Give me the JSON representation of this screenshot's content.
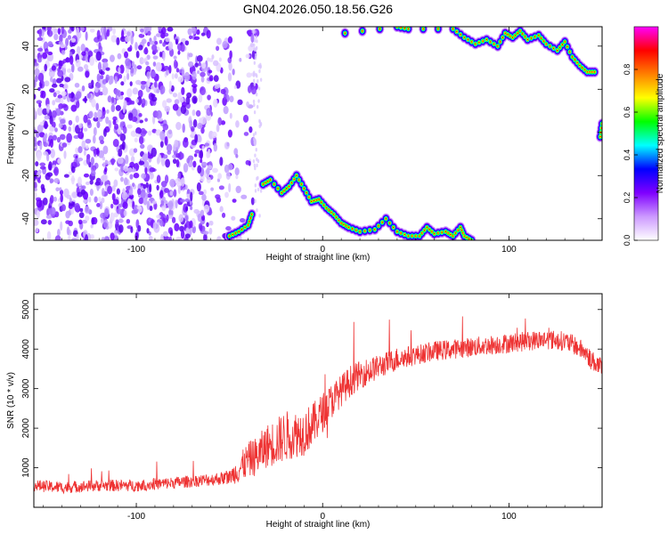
{
  "figure": {
    "title": "GN04.2026.050.18.56.G26"
  },
  "chart_data": [
    {
      "type": "heatmap",
      "title": "GN04.2026.050.18.56.G26",
      "xlabel": "Height of straight line (km)",
      "ylabel": "Frequency (Hz)",
      "xlim": [
        -155,
        150
      ],
      "ylim": [
        -50,
        49
      ],
      "x_ticks": [
        -100,
        0,
        100
      ],
      "x_tick_labels": [
        "-100",
        "0",
        "100"
      ],
      "y_ticks": [
        -40,
        -20,
        0,
        20,
        40
      ],
      "y_tick_labels": [
        "-40",
        "-20",
        "0",
        "20",
        "40"
      ],
      "colorbar": {
        "label": "Normalized spectral amplitude",
        "range": [
          0,
          1
        ],
        "ticks": [
          0.0,
          0.2,
          0.4,
          0.6,
          0.8
        ],
        "tick_labels": [
          "0.0",
          "0.2",
          "0.4",
          "0.6",
          "0.8"
        ],
        "colormap": [
          "#ffffff",
          "#cc99ff",
          "#7f00ff",
          "#0000ff",
          "#00ffff",
          "#00ff00",
          "#ffff00",
          "#ff8000",
          "#ff0000",
          "#ff00ff"
        ]
      },
      "noise_region": {
        "x_range": [
          -155,
          -35
        ],
        "y_range": [
          -50,
          49
        ],
        "typical_amplitude": 0.15
      },
      "ridge_tracks": [
        {
          "points": [
            [
              -50,
              -48
            ],
            [
              -45,
              -46
            ],
            [
              -40,
              -43
            ],
            [
              -38,
              -38
            ]
          ]
        },
        {
          "points": [
            [
              -32,
              -24
            ],
            [
              -28,
              -22
            ],
            [
              -22,
              -28
            ],
            [
              -18,
              -25
            ],
            [
              -14,
              -20
            ],
            [
              -10,
              -26
            ],
            [
              -6,
              -32
            ],
            [
              -2,
              -31
            ],
            [
              2,
              -35
            ],
            [
              6,
              -38
            ],
            [
              10,
              -42
            ],
            [
              14,
              -44
            ],
            [
              20,
              -46
            ],
            [
              28,
              -45
            ],
            [
              34,
              -40
            ],
            [
              40,
              -46
            ],
            [
              46,
              -48
            ],
            [
              52,
              -48
            ],
            [
              56,
              -44
            ],
            [
              60,
              -47
            ],
            [
              66,
              -46
            ],
            [
              70,
              -48
            ],
            [
              74,
              -44
            ],
            [
              76,
              -48
            ],
            [
              80,
              -50
            ]
          ]
        },
        {
          "points": [
            [
              12,
              46
            ],
            [
              40,
              49
            ],
            [
              46,
              48
            ],
            [
              70,
              48
            ],
            [
              76,
              44
            ],
            [
              82,
              41
            ],
            [
              88,
              43
            ],
            [
              94,
              40
            ],
            [
              98,
              46
            ],
            [
              102,
              44
            ],
            [
              106,
              47
            ],
            [
              110,
              43
            ],
            [
              116,
              45
            ],
            [
              120,
              41
            ],
            [
              126,
              38
            ],
            [
              130,
              42
            ],
            [
              134,
              35
            ],
            [
              138,
              31
            ],
            [
              142,
              28
            ],
            [
              146,
              28
            ]
          ]
        },
        {
          "points": [
            [
              150,
              4
            ],
            [
              149,
              -2
            ]
          ]
        }
      ]
    },
    {
      "type": "line",
      "xlabel": "Height of straight line (km)",
      "ylabel": "SNR (10 * v/v)",
      "xlim": [
        -155,
        150
      ],
      "ylim": [
        0,
        5400
      ],
      "x_ticks": [
        -100,
        0,
        100
      ],
      "x_tick_labels": [
        "-100",
        "0",
        "100"
      ],
      "y_ticks": [
        1000,
        2000,
        3000,
        4000,
        5000
      ],
      "y_tick_labels": [
        "1000",
        "2000",
        "3000",
        "4000",
        "5000"
      ],
      "color": "#ee3333",
      "series": [
        {
          "x": [
            -155,
            -140,
            -120,
            -100,
            -80,
            -60,
            -50,
            -45,
            -40,
            -35,
            -30,
            -25,
            -20,
            -15,
            -10,
            -5,
            0,
            5,
            10,
            15,
            20,
            25,
            30,
            40,
            50,
            60,
            70,
            80,
            90,
            100,
            110,
            120,
            130,
            135,
            140,
            145,
            150
          ],
          "values": [
            550,
            500,
            550,
            550,
            620,
            700,
            760,
            950,
            1200,
            1300,
            1550,
            1650,
            1800,
            1850,
            1900,
            2100,
            2400,
            2700,
            2950,
            3200,
            3350,
            3450,
            3550,
            3750,
            3850,
            3950,
            4000,
            4050,
            4100,
            4150,
            4200,
            4250,
            4200,
            4100,
            3950,
            3700,
            3500
          ],
          "noise_amplitude": [
            150,
            150,
            150,
            150,
            150,
            160,
            170,
            350,
            450,
            500,
            550,
            600,
            650,
            600,
            600,
            550,
            500,
            450,
            400,
            400,
            350,
            350,
            300,
            300,
            250,
            250,
            250,
            250,
            250,
            250,
            250,
            250,
            250,
            250,
            250,
            250,
            250
          ]
        }
      ]
    }
  ]
}
